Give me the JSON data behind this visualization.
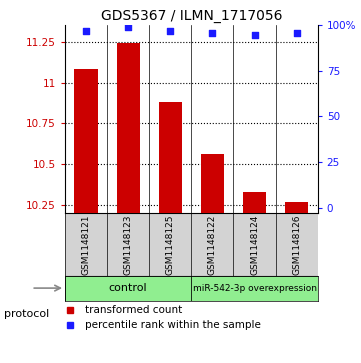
{
  "title": "GDS5367 / ILMN_1717056",
  "samples": [
    "GSM1148121",
    "GSM1148123",
    "GSM1148125",
    "GSM1148122",
    "GSM1148124",
    "GSM1148126"
  ],
  "transformed_counts": [
    11.08,
    11.24,
    10.88,
    10.56,
    10.33,
    10.27
  ],
  "percentile_ranks": [
    97,
    99,
    97,
    96,
    95,
    96
  ],
  "ylim_left": [
    10.2,
    11.35
  ],
  "ylim_right": [
    -3,
    100
  ],
  "yticks_left": [
    10.25,
    10.5,
    10.75,
    11.0,
    11.25
  ],
  "ytick_labels_left": [
    "10.25",
    "10.5",
    "10.75",
    "11",
    "11.25"
  ],
  "yticks_right": [
    0,
    25,
    50,
    75,
    100
  ],
  "ytick_labels_right": [
    "0",
    "25",
    "50",
    "75",
    "100%"
  ],
  "bar_color": "#cc0000",
  "dot_color": "#1a1aff",
  "bar_width": 0.55,
  "control_label": "control",
  "mir_label": "miR-542-3p overexpression",
  "group_color": "#90ee90",
  "sample_box_color": "#d3d3d3",
  "protocol_label": "protocol",
  "legend_items": [
    {
      "color": "#cc0000",
      "label": "transformed count"
    },
    {
      "color": "#1a1aff",
      "label": "percentile rank within the sample"
    }
  ],
  "tick_color_left": "#cc0000",
  "tick_color_right": "#1a1aff",
  "grid_linestyle": ":",
  "grid_linewidth": 0.8,
  "grid_color": "black"
}
